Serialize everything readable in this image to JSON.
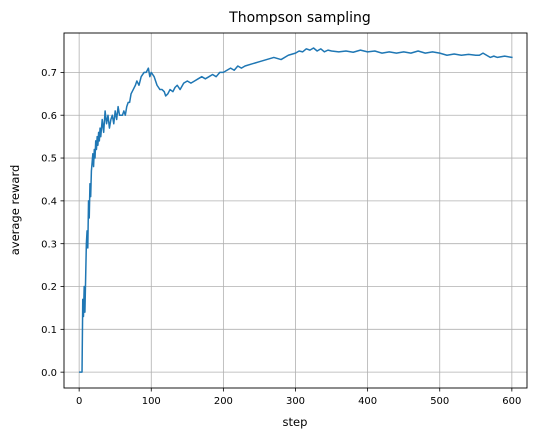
{
  "chart_data": {
    "type": "line",
    "title": "Thompson sampling",
    "xlabel": "step",
    "ylabel": "average reward",
    "xlim": [
      -21,
      621
    ],
    "ylim": [
      -0.037,
      0.792
    ],
    "xticks": [
      0,
      100,
      200,
      300,
      400,
      500,
      600
    ],
    "yticks": [
      0.0,
      0.1,
      0.2,
      0.3,
      0.4,
      0.5,
      0.6,
      0.7
    ],
    "ytick_labels": [
      "0.0",
      "0.1",
      "0.2",
      "0.3",
      "0.4",
      "0.5",
      "0.6",
      "0.7"
    ],
    "grid": true,
    "line_color": "#1f77b4",
    "series": [
      {
        "x": [
          1,
          3,
          4,
          5,
          6,
          7,
          8,
          9,
          10,
          11,
          12,
          13,
          14,
          15,
          16,
          17,
          18,
          19,
          20,
          21,
          22,
          23,
          24,
          25,
          26,
          27,
          28,
          29,
          30,
          32,
          34,
          36,
          38,
          40,
          42,
          44,
          46,
          48,
          50,
          52,
          54,
          56,
          58,
          60,
          62,
          64,
          66,
          68,
          70,
          72,
          75,
          78,
          80,
          83,
          86,
          90,
          93,
          96,
          98,
          100,
          102,
          104,
          106,
          108,
          110,
          112,
          115,
          118,
          120,
          123,
          126,
          130,
          133,
          136,
          140,
          145,
          150,
          155,
          160,
          165,
          170,
          175,
          180,
          185,
          190,
          195,
          200,
          205,
          210,
          215,
          220,
          225,
          230,
          240,
          250,
          260,
          270,
          280,
          290,
          300,
          305,
          310,
          315,
          320,
          325,
          330,
          335,
          340,
          345,
          350,
          360,
          370,
          380,
          390,
          400,
          410,
          420,
          430,
          440,
          450,
          460,
          470,
          480,
          490,
          500,
          510,
          520,
          530,
          540,
          550,
          555,
          560,
          565,
          570,
          575,
          580,
          590,
          600
        ],
        "y": [
          0.0,
          0.0,
          0.0,
          0.17,
          0.13,
          0.2,
          0.14,
          0.22,
          0.3,
          0.33,
          0.29,
          0.4,
          0.36,
          0.44,
          0.41,
          0.47,
          0.49,
          0.51,
          0.48,
          0.52,
          0.5,
          0.54,
          0.52,
          0.55,
          0.53,
          0.56,
          0.54,
          0.57,
          0.55,
          0.59,
          0.56,
          0.61,
          0.58,
          0.6,
          0.57,
          0.59,
          0.6,
          0.58,
          0.61,
          0.59,
          0.62,
          0.6,
          0.6,
          0.6,
          0.61,
          0.6,
          0.62,
          0.63,
          0.63,
          0.65,
          0.66,
          0.67,
          0.68,
          0.67,
          0.69,
          0.7,
          0.7,
          0.71,
          0.69,
          0.7,
          0.695,
          0.69,
          0.68,
          0.67,
          0.665,
          0.66,
          0.66,
          0.655,
          0.645,
          0.65,
          0.66,
          0.655,
          0.665,
          0.67,
          0.66,
          0.675,
          0.68,
          0.675,
          0.68,
          0.685,
          0.69,
          0.685,
          0.69,
          0.695,
          0.69,
          0.7,
          0.7,
          0.705,
          0.71,
          0.705,
          0.715,
          0.71,
          0.715,
          0.72,
          0.725,
          0.73,
          0.735,
          0.73,
          0.74,
          0.745,
          0.75,
          0.748,
          0.755,
          0.752,
          0.757,
          0.75,
          0.755,
          0.748,
          0.752,
          0.75,
          0.748,
          0.75,
          0.747,
          0.752,
          0.748,
          0.75,
          0.745,
          0.748,
          0.745,
          0.748,
          0.745,
          0.75,
          0.745,
          0.748,
          0.745,
          0.74,
          0.743,
          0.74,
          0.742,
          0.74,
          0.74,
          0.745,
          0.74,
          0.735,
          0.738,
          0.735,
          0.738,
          0.735
        ]
      }
    ]
  }
}
